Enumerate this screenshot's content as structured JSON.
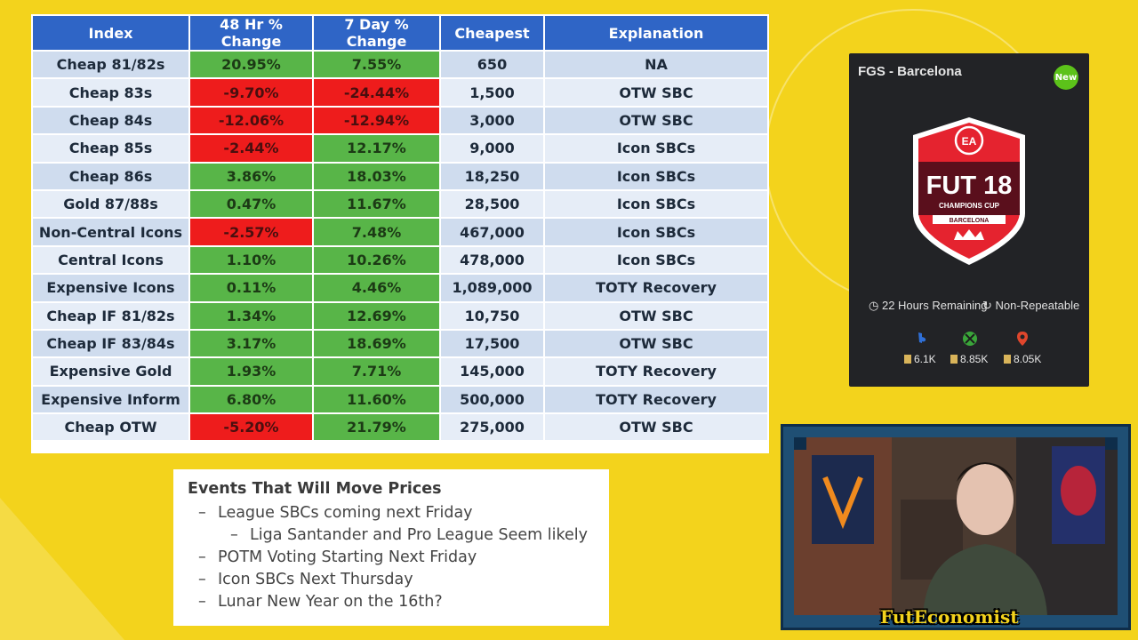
{
  "table": {
    "headers": [
      "Index",
      "48 Hr % Change",
      "7 Day % Change",
      "Cheapest",
      "Explanation"
    ],
    "rows": [
      {
        "index": "Cheap 81/82s",
        "h48": "20.95%",
        "d7": "7.55%",
        "cheapest": "650",
        "explanation": "NA",
        "h48_sign": "pos",
        "d7_sign": "pos"
      },
      {
        "index": "Cheap 83s",
        "h48": "-9.70%",
        "d7": "-24.44%",
        "cheapest": "1,500",
        "explanation": "OTW SBC",
        "h48_sign": "neg",
        "d7_sign": "neg"
      },
      {
        "index": "Cheap 84s",
        "h48": "-12.06%",
        "d7": "-12.94%",
        "cheapest": "3,000",
        "explanation": "OTW SBC",
        "h48_sign": "neg",
        "d7_sign": "neg"
      },
      {
        "index": "Cheap 85s",
        "h48": "-2.44%",
        "d7": "12.17%",
        "cheapest": "9,000",
        "explanation": "Icon SBCs",
        "h48_sign": "neg",
        "d7_sign": "pos"
      },
      {
        "index": "Cheap 86s",
        "h48": "3.86%",
        "d7": "18.03%",
        "cheapest": "18,250",
        "explanation": "Icon SBCs",
        "h48_sign": "pos",
        "d7_sign": "pos"
      },
      {
        "index": "Gold 87/88s",
        "h48": "0.47%",
        "d7": "11.67%",
        "cheapest": "28,500",
        "explanation": "Icon SBCs",
        "h48_sign": "pos",
        "d7_sign": "pos"
      },
      {
        "index": "Non-Central Icons",
        "h48": "-2.57%",
        "d7": "7.48%",
        "cheapest": "467,000",
        "explanation": "Icon SBCs",
        "h48_sign": "neg",
        "d7_sign": "pos"
      },
      {
        "index": "Central Icons",
        "h48": "1.10%",
        "d7": "10.26%",
        "cheapest": "478,000",
        "explanation": "Icon SBCs",
        "h48_sign": "pos",
        "d7_sign": "pos"
      },
      {
        "index": "Expensive Icons",
        "h48": "0.11%",
        "d7": "4.46%",
        "cheapest": "1,089,000",
        "explanation": "TOTY Recovery",
        "h48_sign": "pos",
        "d7_sign": "pos"
      },
      {
        "index": "Cheap IF 81/82s",
        "h48": "1.34%",
        "d7": "12.69%",
        "cheapest": "10,750",
        "explanation": "OTW SBC",
        "h48_sign": "pos",
        "d7_sign": "pos"
      },
      {
        "index": "Cheap IF 83/84s",
        "h48": "3.17%",
        "d7": "18.69%",
        "cheapest": "17,500",
        "explanation": "OTW SBC",
        "h48_sign": "pos",
        "d7_sign": "pos"
      },
      {
        "index": "Expensive Gold",
        "h48": "1.93%",
        "d7": "7.71%",
        "cheapest": "145,000",
        "explanation": "TOTY Recovery",
        "h48_sign": "pos",
        "d7_sign": "pos"
      },
      {
        "index": "Expensive Inform",
        "h48": "6.80%",
        "d7": "11.60%",
        "cheapest": "500,000",
        "explanation": "TOTY Recovery",
        "h48_sign": "pos",
        "d7_sign": "pos"
      },
      {
        "index": "Cheap OTW",
        "h48": "-5.20%",
        "d7": "21.79%",
        "cheapest": "275,000",
        "explanation": "OTW SBC",
        "h48_sign": "neg",
        "d7_sign": "pos"
      }
    ]
  },
  "notes": {
    "title": "Events That Will Move Prices",
    "items": [
      {
        "dash": "–",
        "text": "League SBCs coming next Friday",
        "level": 1
      },
      {
        "dash": "–",
        "text": "Liga Santander and Pro League Seem likely",
        "level": 2
      },
      {
        "dash": "–",
        "text": "POTM Voting Starting Next Friday",
        "level": 1
      },
      {
        "dash": "–",
        "text": "Icon SBCs Next Thursday",
        "level": 1
      },
      {
        "dash": "–",
        "text": "Lunar New Year on the 16th?",
        "level": 1
      }
    ]
  },
  "sbc_card": {
    "title": "FGS - Barcelona",
    "badge": "New",
    "crest_top": "EA",
    "crest_main": "FUT 18",
    "crest_sub": "CHAMPIONS CUP",
    "crest_city": "BARCELONA",
    "time_remaining": "22 Hours Remaining",
    "repeatable": "Non-Repeatable",
    "prices": [
      {
        "platform_icon": "playstation-icon",
        "value": "6.1K"
      },
      {
        "platform_icon": "xbox-icon",
        "value": "8.85K"
      },
      {
        "platform_icon": "pc-icon",
        "value": "8.05K"
      }
    ]
  },
  "webcam": {
    "label": "FutEconomist"
  },
  "colors": {
    "background": "#f3d31c",
    "header": "#2f65c6",
    "positive": "#58b548",
    "negative": "#ee1c1c",
    "row_dark": "#cfdcee",
    "row_light": "#e6edf7"
  }
}
